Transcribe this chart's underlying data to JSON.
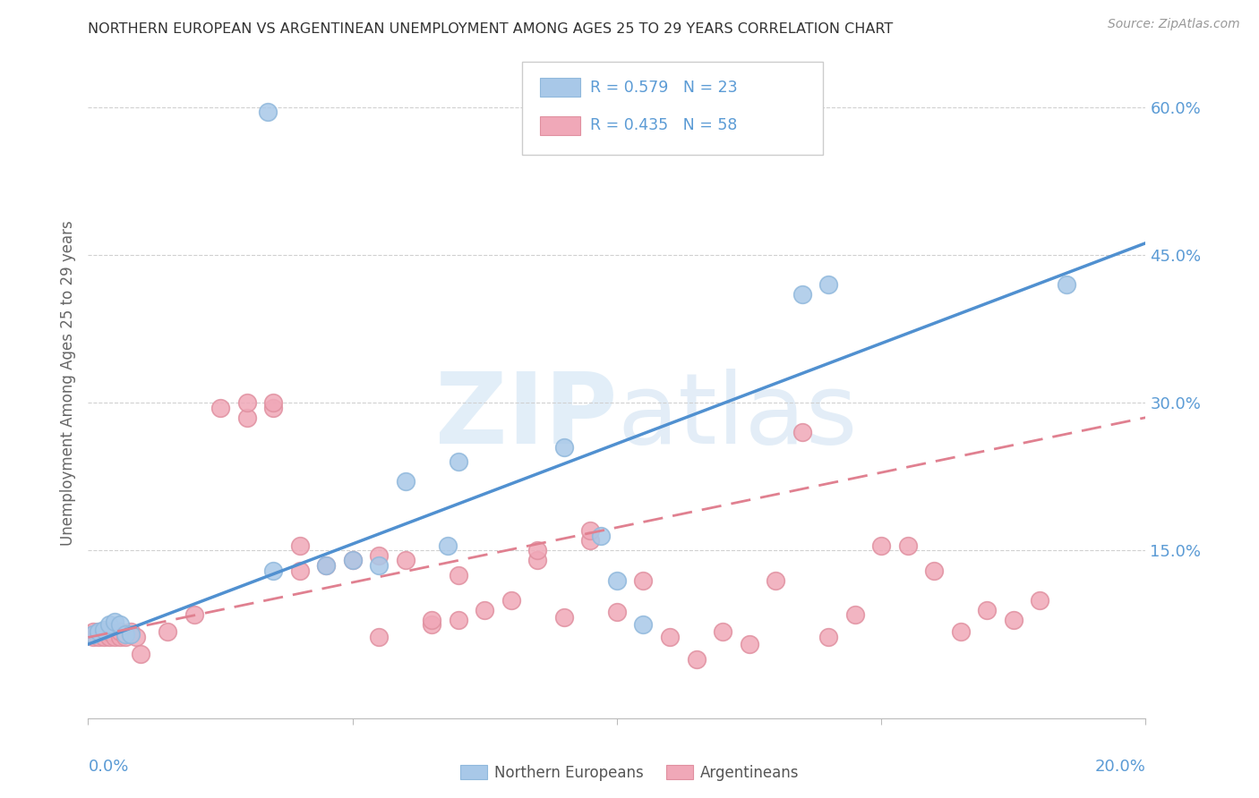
{
  "title": "NORTHERN EUROPEAN VS ARGENTINEAN UNEMPLOYMENT AMONG AGES 25 TO 29 YEARS CORRELATION CHART",
  "source": "Source: ZipAtlas.com",
  "ylabel": "Unemployment Among Ages 25 to 29 years",
  "yticks": [
    0.0,
    0.15,
    0.3,
    0.45,
    0.6
  ],
  "ytick_labels": [
    "",
    "15.0%",
    "30.0%",
    "45.0%",
    "60.0%"
  ],
  "xlim": [
    0.0,
    0.2
  ],
  "ylim": [
    -0.02,
    0.66
  ],
  "legend1_r": "R = 0.579",
  "legend1_n": "N = 23",
  "legend2_r": "R = 0.435",
  "legend2_n": "N = 58",
  "blue_color": "#a8c8e8",
  "pink_color": "#f0a8b8",
  "blue_edge_color": "#90b8dc",
  "pink_edge_color": "#e090a0",
  "blue_line_color": "#5090d0",
  "pink_line_color": "#e08090",
  "axis_label_color": "#5b9bd5",
  "watermark_color": "#d0e4f4",
  "blue_points_x": [
    0.034,
    0.001,
    0.002,
    0.003,
    0.004,
    0.005,
    0.006,
    0.007,
    0.008,
    0.035,
    0.045,
    0.05,
    0.055,
    0.06,
    0.068,
    0.07,
    0.09,
    0.097,
    0.1,
    0.105,
    0.135,
    0.14,
    0.185
  ],
  "blue_points_y": [
    0.595,
    0.065,
    0.068,
    0.07,
    0.075,
    0.078,
    0.075,
    0.065,
    0.065,
    0.13,
    0.135,
    0.14,
    0.135,
    0.22,
    0.155,
    0.24,
    0.255,
    0.165,
    0.12,
    0.075,
    0.41,
    0.42,
    0.42
  ],
  "pink_points_x": [
    0.0,
    0.001,
    0.001,
    0.002,
    0.002,
    0.003,
    0.003,
    0.004,
    0.004,
    0.005,
    0.006,
    0.006,
    0.007,
    0.008,
    0.009,
    0.01,
    0.015,
    0.02,
    0.025,
    0.03,
    0.03,
    0.035,
    0.035,
    0.04,
    0.04,
    0.045,
    0.05,
    0.055,
    0.055,
    0.06,
    0.065,
    0.065,
    0.07,
    0.07,
    0.075,
    0.08,
    0.085,
    0.085,
    0.09,
    0.095,
    0.095,
    0.1,
    0.105,
    0.11,
    0.115,
    0.12,
    0.125,
    0.13,
    0.135,
    0.14,
    0.145,
    0.15,
    0.155,
    0.16,
    0.165,
    0.17,
    0.175,
    0.18
  ],
  "pink_points_y": [
    0.065,
    0.062,
    0.068,
    0.062,
    0.068,
    0.062,
    0.068,
    0.062,
    0.068,
    0.062,
    0.062,
    0.068,
    0.062,
    0.068,
    0.062,
    0.045,
    0.068,
    0.085,
    0.295,
    0.285,
    0.3,
    0.295,
    0.3,
    0.13,
    0.155,
    0.135,
    0.14,
    0.145,
    0.062,
    0.14,
    0.075,
    0.08,
    0.125,
    0.08,
    0.09,
    0.1,
    0.14,
    0.15,
    0.082,
    0.16,
    0.17,
    0.088,
    0.12,
    0.062,
    0.04,
    0.068,
    0.055,
    0.12,
    0.27,
    0.062,
    0.085,
    0.155,
    0.155,
    0.13,
    0.068,
    0.09,
    0.08,
    0.1
  ],
  "blue_trend_x": [
    0.0,
    0.2
  ],
  "blue_trend_y": [
    0.055,
    0.462
  ],
  "pink_trend_x": [
    0.0,
    0.2
  ],
  "pink_trend_y": [
    0.062,
    0.285
  ]
}
